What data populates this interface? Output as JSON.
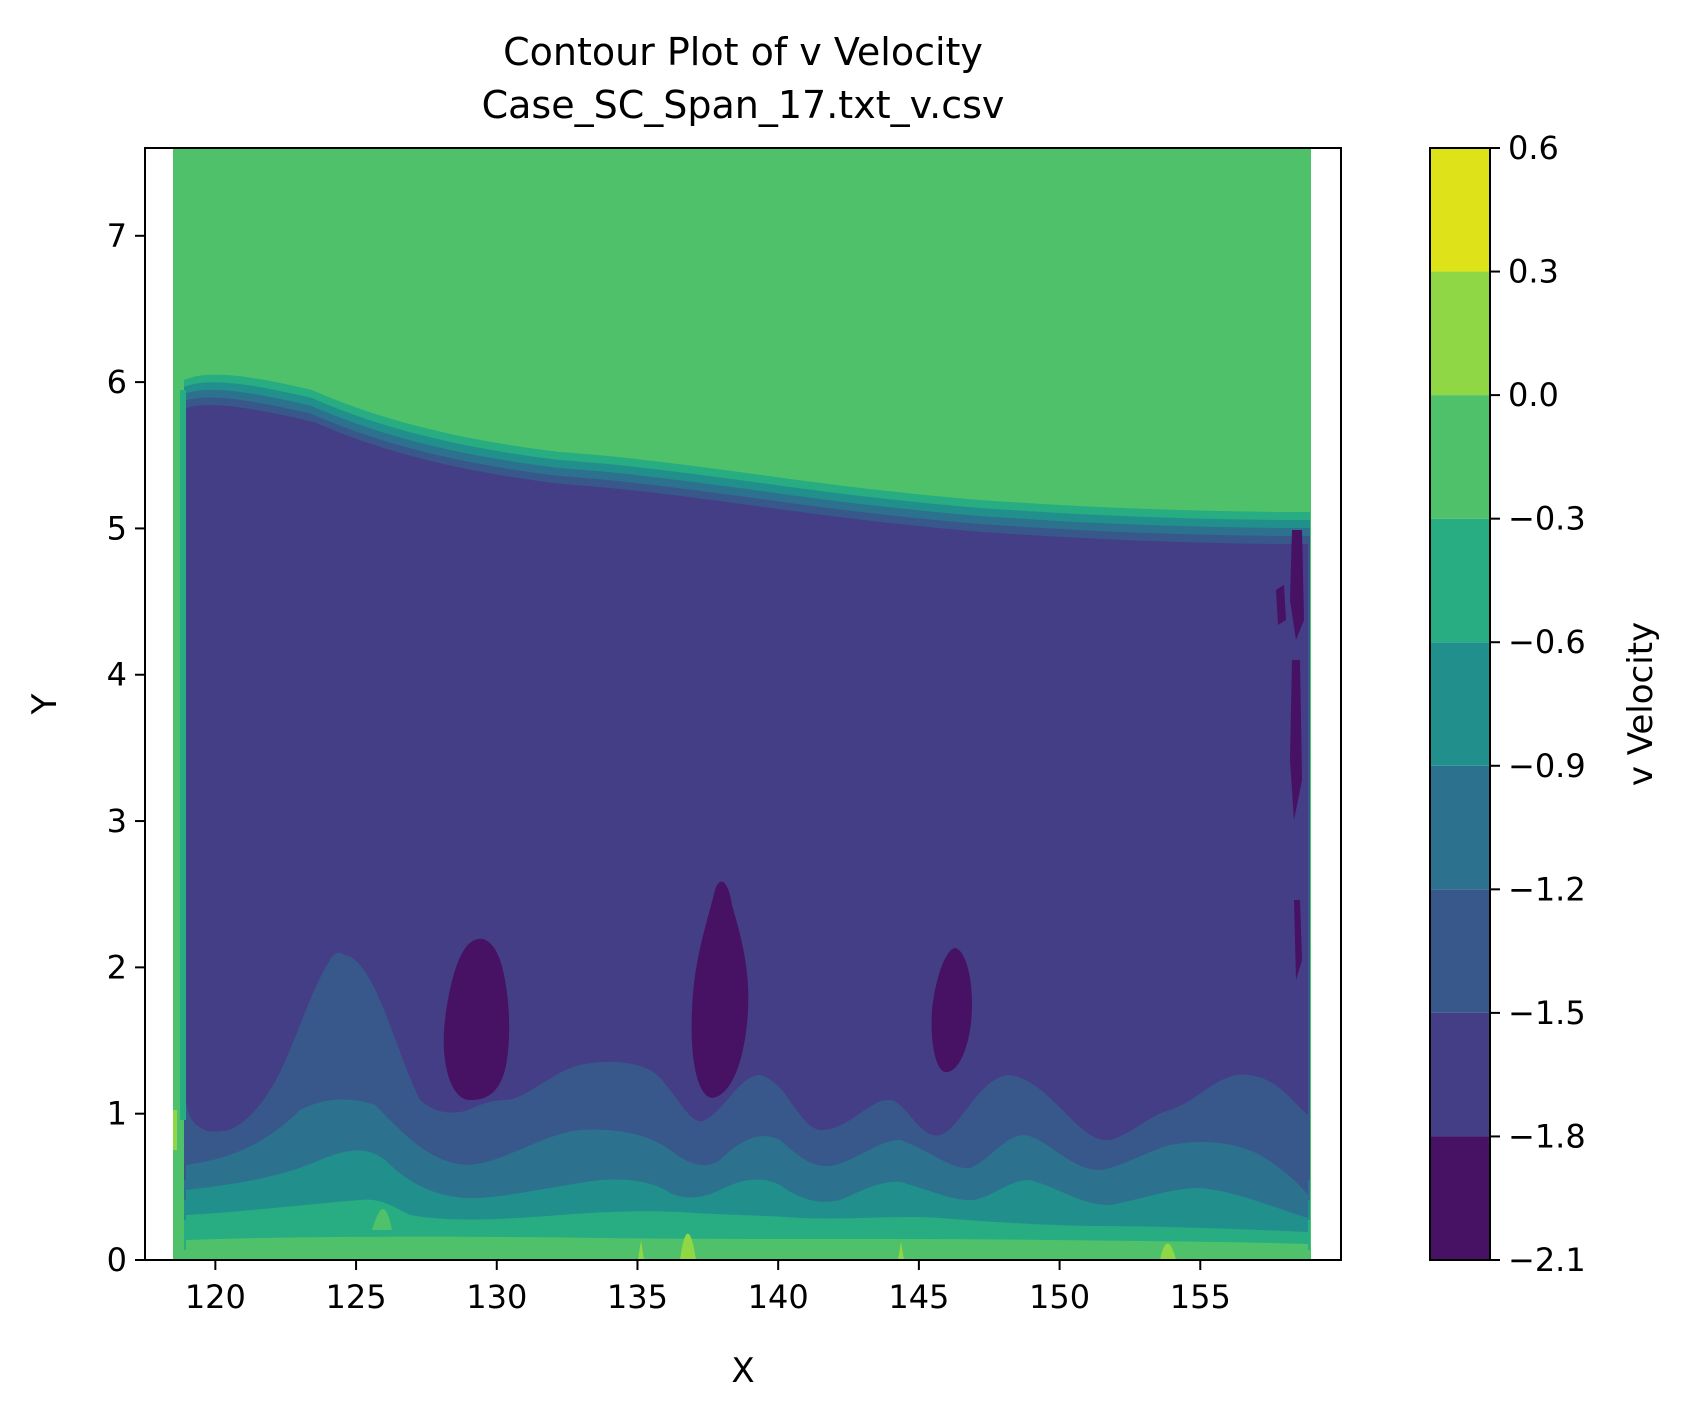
{
  "chart_data": {
    "type": "contour",
    "title": "Contour Plot of v Velocity",
    "subtitle": "Case_SC_Span_17.txt_v.csv",
    "xlabel": "X",
    "ylabel": "Y",
    "xlim": [
      117.5,
      160.0
    ],
    "ylim": [
      0,
      7.6
    ],
    "x_ticks": [
      120,
      125,
      130,
      135,
      140,
      145,
      150,
      155
    ],
    "y_ticks": [
      0,
      1,
      2,
      3,
      4,
      5,
      6,
      7
    ],
    "grid": false,
    "colorbar": {
      "label": "v Velocity",
      "levels": [
        -2.1,
        -1.8,
        -1.5,
        -1.2,
        -0.9,
        -0.6,
        -0.3,
        0.0,
        0.3,
        0.6
      ],
      "tick_labels": [
        "−2.1",
        "−1.8",
        "−1.5",
        "−1.2",
        "−0.9",
        "−0.6",
        "−0.3",
        "0.0",
        "0.3",
        "0.6"
      ],
      "colors": [
        "#471164",
        "#433e85",
        "#38588c",
        "#2c728e",
        "#21908d",
        "#27ad81",
        "#4fc16b",
        "#8fd744",
        "#dde318"
      ]
    },
    "data_x_range": [
      118.5,
      158.8
    ],
    "free_stream_value_band": [
      -0.3,
      0.0
    ],
    "boundary_layer_top": {
      "x": [
        118.5,
        124,
        130,
        140,
        150,
        158.8
      ],
      "y": [
        6.05,
        5.75,
        5.55,
        5.4,
        5.25,
        5.2
      ]
    },
    "minimum_value_cores": [
      {
        "x_center": 129.4,
        "y_range": [
          1.1,
          2.25
        ]
      },
      {
        "x_center": 138.0,
        "y_range": [
          1.15,
          2.65
        ]
      },
      {
        "x_center": 146.3,
        "y_range": [
          1.3,
          2.2
        ]
      }
    ]
  }
}
